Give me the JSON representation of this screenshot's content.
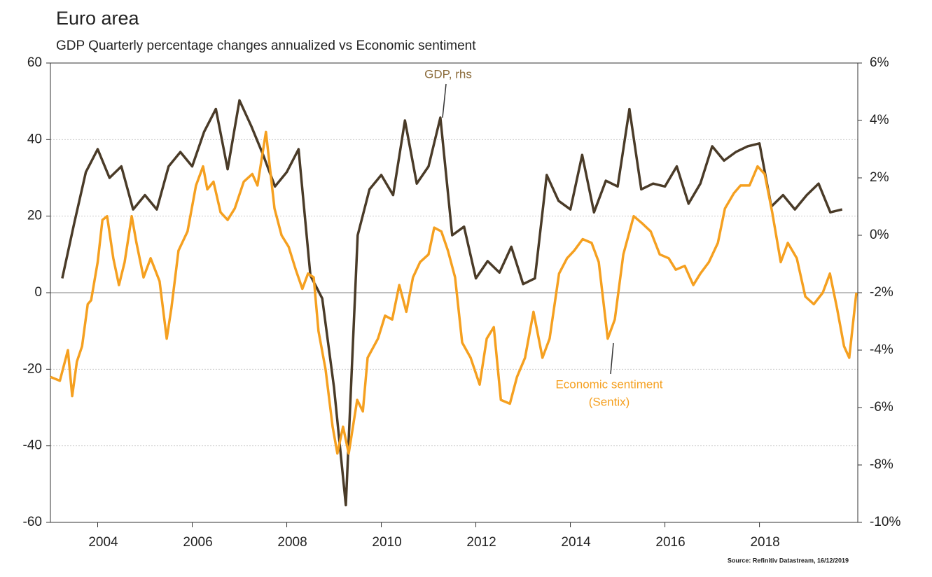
{
  "chart_data": {
    "type": "line",
    "title": "Euro area",
    "subtitle": "GDP Quarterly percentage changes annualized vs Economic sentiment",
    "source": "Source: Refinitiv Datastream, 16/12/2019",
    "xlim": [
      2003,
      2020.08
    ],
    "xticks": [
      2004,
      2006,
      2008,
      2010,
      2012,
      2014,
      2016,
      2018
    ],
    "ylim": [
      -60,
      60
    ],
    "yticks": [
      -60,
      -40,
      -20,
      0,
      20,
      40,
      60
    ],
    "y2lim": [
      -10,
      6
    ],
    "y2ticks": [
      {
        "value": -10,
        "label": "-10%"
      },
      {
        "value": -8,
        "label": "-8%"
      },
      {
        "value": -6,
        "label": "-6%"
      },
      {
        "value": -4,
        "label": "-4%"
      },
      {
        "value": -2,
        "label": "-2%"
      },
      {
        "value": 0,
        "label": "0%"
      },
      {
        "value": 2,
        "label": "2%"
      },
      {
        "value": 4,
        "label": "4%"
      },
      {
        "value": 6,
        "label": "6%"
      }
    ],
    "grid": true,
    "series": [
      {
        "name": "Economic sentiment",
        "color": "#f5a020",
        "axis": "y",
        "x": [
          2003.0,
          2003.2,
          2003.37,
          2003.46,
          2003.56,
          2003.67,
          2003.79,
          2003.86,
          2004.0,
          2004.1,
          2004.2,
          2004.33,
          2004.45,
          2004.57,
          2004.72,
          2004.82,
          2004.97,
          2005.12,
          2005.31,
          2005.46,
          2005.56,
          2005.71,
          2005.9,
          2006.08,
          2006.23,
          2006.32,
          2006.45,
          2006.6,
          2006.75,
          2006.9,
          2007.09,
          2007.27,
          2007.38,
          2007.56,
          2007.74,
          2007.89,
          2008.04,
          2008.19,
          2008.33,
          2008.45,
          2008.57,
          2008.67,
          2008.82,
          2008.97,
          2009.07,
          2009.19,
          2009.31,
          2009.49,
          2009.61,
          2009.71,
          2009.93,
          2010.08,
          2010.23,
          2010.38,
          2010.53,
          2010.67,
          2010.82,
          2011.0,
          2011.12,
          2011.27,
          2011.41,
          2011.56,
          2011.71,
          2011.89,
          2012.08,
          2012.23,
          2012.38,
          2012.53,
          2012.72,
          2012.87,
          2013.04,
          2013.22,
          2013.41,
          2013.56,
          2013.76,
          2013.93,
          2014.08,
          2014.26,
          2014.45,
          2014.6,
          2014.79,
          2014.94,
          2015.12,
          2015.34,
          2015.53,
          2015.7,
          2015.89,
          2016.08,
          2016.23,
          2016.42,
          2016.6,
          2016.75,
          2016.93,
          2017.12,
          2017.27,
          2017.46,
          2017.6,
          2017.79,
          2017.96,
          2018.11,
          2018.27,
          2018.45,
          2018.6,
          2018.79,
          2018.97,
          2019.15,
          2019.34,
          2019.49,
          2019.64,
          2019.79,
          2019.9,
          2020.05
        ],
        "values": [
          -22,
          -23,
          -15,
          -27,
          -18,
          -14,
          -3,
          -2,
          8,
          19,
          20,
          9,
          2,
          8,
          20,
          13,
          4,
          9,
          3,
          -12,
          -4,
          11,
          16,
          28,
          33,
          27,
          29,
          21,
          19,
          22,
          29,
          31,
          28,
          42,
          22,
          15,
          12,
          6,
          1,
          5,
          4,
          -10,
          -20,
          -35,
          -42,
          -35,
          -42,
          -28,
          -31,
          -17,
          -12,
          -6,
          -7,
          2,
          -5,
          4,
          8,
          10,
          17,
          16,
          11,
          4,
          -13,
          -17,
          -24,
          -12,
          -9,
          -28,
          -29,
          -22,
          -17,
          -5,
          -17,
          -12,
          5,
          9,
          11,
          14,
          13,
          8,
          -12,
          -7,
          10,
          20,
          18,
          16,
          10,
          9,
          6,
          7,
          2,
          5,
          8,
          13,
          22,
          26,
          28,
          28,
          33,
          31,
          21,
          8,
          13,
          9,
          -1,
          -3,
          0,
          5,
          -4,
          -14,
          -17,
          0
        ]
      },
      {
        "name": "GDP",
        "color": "#4a3b28",
        "axis": "y2",
        "x": [
          2003.25,
          2003.5,
          2003.75,
          2004.0,
          2004.25,
          2004.5,
          2004.75,
          2005.0,
          2005.25,
          2005.5,
          2005.75,
          2006.0,
          2006.25,
          2006.5,
          2006.75,
          2007.0,
          2007.25,
          2007.5,
          2007.75,
          2008.0,
          2008.25,
          2008.5,
          2008.75,
          2009.0,
          2009.25,
          2009.5,
          2009.75,
          2010.0,
          2010.25,
          2010.5,
          2010.75,
          2011.0,
          2011.25,
          2011.5,
          2011.75,
          2012.0,
          2012.25,
          2012.5,
          2012.75,
          2013.0,
          2013.25,
          2013.5,
          2013.75,
          2014.0,
          2014.25,
          2014.5,
          2014.75,
          2015.0,
          2015.25,
          2015.5,
          2015.75,
          2016.0,
          2016.25,
          2016.5,
          2016.75,
          2017.0,
          2017.25,
          2017.5,
          2017.75,
          2018.0,
          2018.25,
          2018.5,
          2018.75,
          2019.0,
          2019.25,
          2019.5,
          2019.75
        ],
        "values": [
          -1.5,
          0.4,
          2.2,
          3.0,
          2.0,
          2.4,
          0.9,
          1.4,
          0.9,
          2.4,
          2.9,
          2.4,
          3.6,
          4.4,
          2.3,
          4.7,
          3.8,
          2.8,
          1.7,
          2.2,
          3.0,
          -1.4,
          -2.2,
          -5.3,
          -9.4,
          0.0,
          1.6,
          2.1,
          1.4,
          4.0,
          1.8,
          2.4,
          4.1,
          0.0,
          0.3,
          -1.5,
          -0.9,
          -1.3,
          -0.4,
          -1.7,
          -1.5,
          2.1,
          1.2,
          0.9,
          2.8,
          0.8,
          1.9,
          1.7,
          4.4,
          1.6,
          1.8,
          1.7,
          2.4,
          1.1,
          1.8,
          3.1,
          2.6,
          2.9,
          3.1,
          3.2,
          1.0,
          1.4,
          0.9,
          1.4,
          1.8,
          0.8,
          0.9
        ]
      }
    ],
    "annotations": [
      {
        "text": [
          "GDP, rhs"
        ],
        "color": "#8b6b3a"
      },
      {
        "text": [
          "Economic sentiment",
          "(Sentix)"
        ],
        "color": "#f5a020"
      }
    ]
  }
}
